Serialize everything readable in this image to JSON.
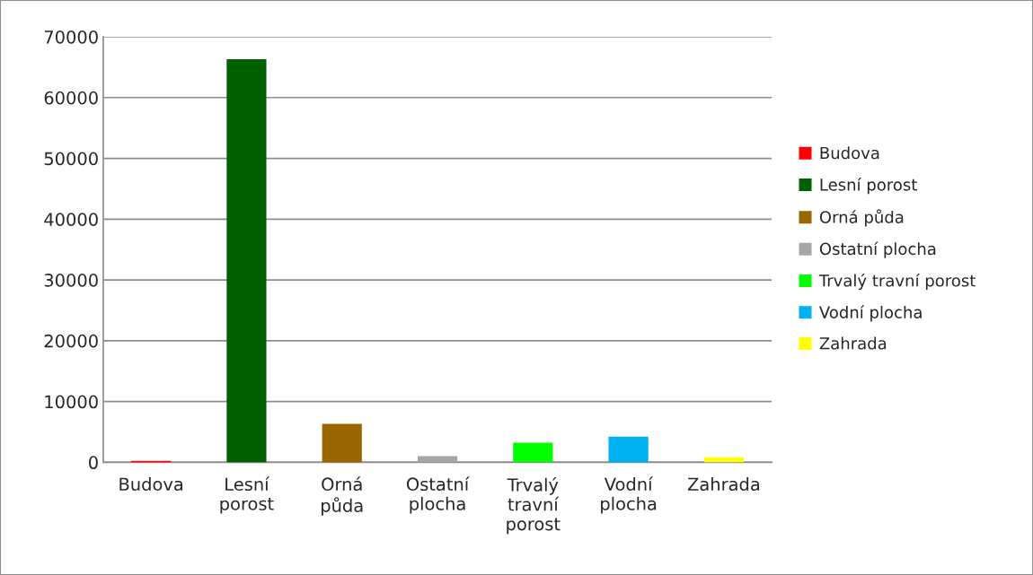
{
  "chart_data": {
    "type": "bar",
    "categories": [
      "Budova",
      "Lesní\nporost",
      "Orná\npůda",
      "Ostatní\nplocha",
      "Trvalý\ntravní\nporost",
      "Vodní\nplocha",
      "Zahrada"
    ],
    "series": [
      {
        "name": "Budova",
        "color": "#ff0000",
        "values": [
          100,
          null,
          null,
          null,
          null,
          null,
          null
        ]
      },
      {
        "name": "Lesní porost",
        "color": "#006100",
        "values": [
          null,
          66200,
          null,
          null,
          null,
          null,
          null
        ]
      },
      {
        "name": "Orná půda",
        "color": "#996600",
        "values": [
          null,
          null,
          6200,
          null,
          null,
          null,
          null
        ]
      },
      {
        "name": "Ostatní plocha",
        "color": "#a6a6a6",
        "values": [
          null,
          null,
          null,
          900,
          null,
          null,
          null
        ]
      },
      {
        "name": "Trvalý travní porost",
        "color": "#00ff00",
        "values": [
          null,
          null,
          null,
          null,
          3100,
          null,
          null
        ]
      },
      {
        "name": "Vodní plocha",
        "color": "#00b0f0",
        "values": [
          null,
          null,
          null,
          null,
          null,
          4100,
          null
        ]
      },
      {
        "name": "Zahrada",
        "color": "#ffff00",
        "values": [
          null,
          null,
          null,
          null,
          null,
          null,
          700
        ]
      }
    ],
    "ylim": [
      0,
      70000
    ],
    "yticks": [
      0,
      10000,
      20000,
      30000,
      40000,
      50000,
      60000,
      70000
    ],
    "grid": "y",
    "legend": "right"
  }
}
